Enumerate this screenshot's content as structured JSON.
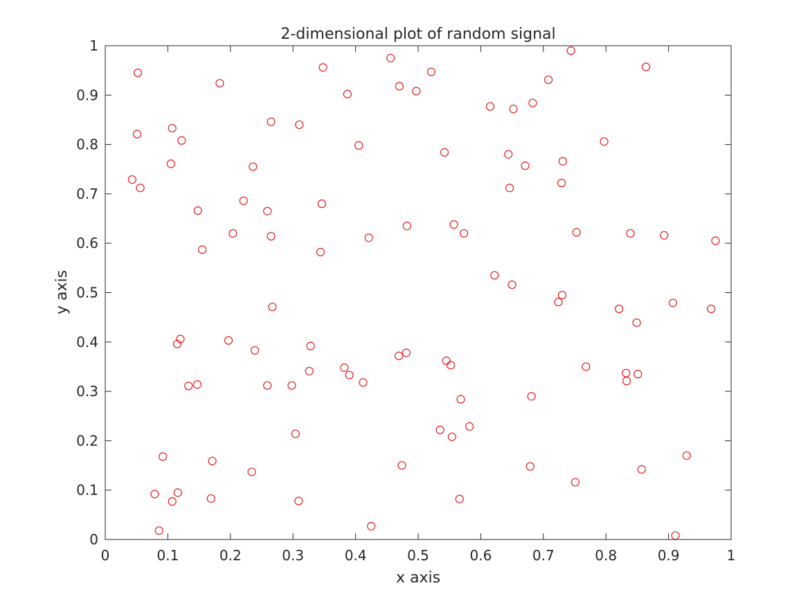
{
  "chart_data": {
    "type": "scatter",
    "title": "2-dimensional plot of random signal",
    "xlabel": "x axis",
    "ylabel": "y axis",
    "xlim": [
      0,
      1
    ],
    "ylim": [
      0,
      1
    ],
    "xticks": [
      "0",
      "0.1",
      "0.2",
      "0.3",
      "0.4",
      "0.5",
      "0.6",
      "0.7",
      "0.8",
      "0.9",
      "1"
    ],
    "yticks": [
      "0",
      "0.1",
      "0.2",
      "0.3",
      "0.4",
      "0.5",
      "0.6",
      "0.7",
      "0.8",
      "0.9",
      "1"
    ],
    "grid": false,
    "marker": "circle-open",
    "marker_color": "#e41a1c",
    "series": [
      {
        "points": [
          [
            0.052,
            0.945
          ],
          [
            0.051,
            0.821
          ],
          [
            0.043,
            0.729
          ],
          [
            0.056,
            0.712
          ],
          [
            0.107,
            0.833
          ],
          [
            0.122,
            0.808
          ],
          [
            0.105,
            0.761
          ],
          [
            0.148,
            0.666
          ],
          [
            0.155,
            0.587
          ],
          [
            0.183,
            0.924
          ],
          [
            0.221,
            0.686
          ],
          [
            0.204,
            0.62
          ],
          [
            0.236,
            0.755
          ],
          [
            0.265,
            0.846
          ],
          [
            0.259,
            0.665
          ],
          [
            0.265,
            0.614
          ],
          [
            0.267,
            0.471
          ],
          [
            0.31,
            0.84
          ],
          [
            0.346,
            0.68
          ],
          [
            0.348,
            0.956
          ],
          [
            0.344,
            0.582
          ],
          [
            0.387,
            0.902
          ],
          [
            0.405,
            0.798
          ],
          [
            0.421,
            0.611
          ],
          [
            0.456,
            0.975
          ],
          [
            0.47,
            0.918
          ],
          [
            0.497,
            0.908
          ],
          [
            0.521,
            0.947
          ],
          [
            0.482,
            0.635
          ],
          [
            0.542,
            0.784
          ],
          [
            0.557,
            0.638
          ],
          [
            0.573,
            0.62
          ],
          [
            0.615,
            0.877
          ],
          [
            0.652,
            0.872
          ],
          [
            0.683,
            0.884
          ],
          [
            0.708,
            0.931
          ],
          [
            0.744,
            0.99
          ],
          [
            0.864,
            0.957
          ],
          [
            0.644,
            0.78
          ],
          [
            0.671,
            0.757
          ],
          [
            0.731,
            0.766
          ],
          [
            0.797,
            0.806
          ],
          [
            0.646,
            0.712
          ],
          [
            0.729,
            0.722
          ],
          [
            0.753,
            0.622
          ],
          [
            0.839,
            0.62
          ],
          [
            0.893,
            0.616
          ],
          [
            0.975,
            0.605
          ],
          [
            0.622,
            0.535
          ],
          [
            0.65,
            0.516
          ],
          [
            0.73,
            0.495
          ],
          [
            0.724,
            0.481
          ],
          [
            0.821,
            0.467
          ],
          [
            0.849,
            0.439
          ],
          [
            0.907,
            0.479
          ],
          [
            0.968,
            0.467
          ],
          [
            0.12,
            0.406
          ],
          [
            0.115,
            0.396
          ],
          [
            0.197,
            0.403
          ],
          [
            0.239,
            0.383
          ],
          [
            0.328,
            0.392
          ],
          [
            0.133,
            0.311
          ],
          [
            0.147,
            0.314
          ],
          [
            0.259,
            0.312
          ],
          [
            0.298,
            0.312
          ],
          [
            0.326,
            0.341
          ],
          [
            0.382,
            0.348
          ],
          [
            0.39,
            0.333
          ],
          [
            0.412,
            0.318
          ],
          [
            0.469,
            0.372
          ],
          [
            0.481,
            0.378
          ],
          [
            0.545,
            0.362
          ],
          [
            0.552,
            0.353
          ],
          [
            0.568,
            0.284
          ],
          [
            0.768,
            0.35
          ],
          [
            0.832,
            0.337
          ],
          [
            0.833,
            0.321
          ],
          [
            0.851,
            0.335
          ],
          [
            0.681,
            0.29
          ],
          [
            0.304,
            0.214
          ],
          [
            0.535,
            0.222
          ],
          [
            0.554,
            0.208
          ],
          [
            0.582,
            0.229
          ],
          [
            0.092,
            0.168
          ],
          [
            0.171,
            0.159
          ],
          [
            0.234,
            0.137
          ],
          [
            0.474,
            0.15
          ],
          [
            0.679,
            0.148
          ],
          [
            0.751,
            0.116
          ],
          [
            0.857,
            0.142
          ],
          [
            0.929,
            0.17
          ],
          [
            0.079,
            0.092
          ],
          [
            0.116,
            0.095
          ],
          [
            0.107,
            0.077
          ],
          [
            0.169,
            0.083
          ],
          [
            0.309,
            0.078
          ],
          [
            0.566,
            0.082
          ],
          [
            0.086,
            0.018
          ],
          [
            0.425,
            0.027
          ],
          [
            0.911,
            0.008
          ]
        ]
      }
    ]
  }
}
